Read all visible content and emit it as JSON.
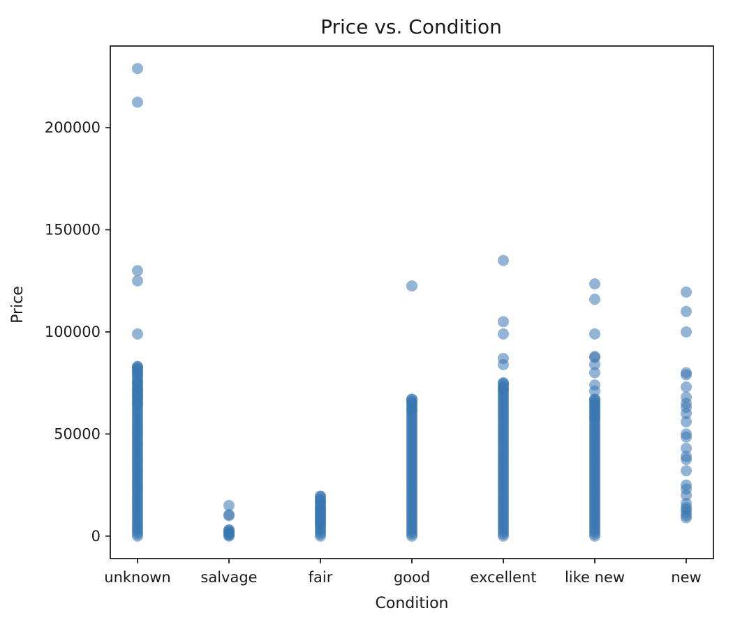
{
  "chart_data": {
    "type": "scatter",
    "title": "Price vs. Condition",
    "xlabel": "Condition",
    "ylabel": "Price",
    "categories": [
      "unknown",
      "salvage",
      "fair",
      "good",
      "excellent",
      "like new",
      "new"
    ],
    "ylim": [
      -11000,
      240000
    ],
    "yticks": [
      0,
      50000,
      100000,
      150000,
      200000
    ],
    "grid": false,
    "point_color": "#3a76b0",
    "series": [
      {
        "category": "unknown",
        "dense_range": [
          0,
          83000
        ],
        "points": [
          229000,
          212500,
          130000,
          125000,
          99000,
          83000,
          82000,
          80000,
          75000,
          72000,
          70000,
          68000,
          65000
        ]
      },
      {
        "category": "salvage",
        "dense_range": [
          0,
          3000
        ],
        "points": [
          15000,
          10500,
          10000,
          3000,
          2000,
          1000,
          500
        ]
      },
      {
        "category": "fair",
        "dense_range": [
          0,
          19500
        ],
        "points": [
          19500,
          17000,
          14000,
          12000,
          10000,
          8000,
          6000
        ]
      },
      {
        "category": "good",
        "dense_range": [
          0,
          67000
        ],
        "points": [
          122500,
          67000,
          65000,
          62000
        ]
      },
      {
        "category": "excellent",
        "dense_range": [
          0,
          75000
        ],
        "points": [
          135000,
          105000,
          99000,
          87000,
          84000,
          75000,
          72000
        ]
      },
      {
        "category": "like new",
        "dense_range": [
          0,
          67000
        ],
        "points": [
          123500,
          116000,
          99000,
          88000,
          87500,
          84000,
          80000,
          74000,
          71000,
          67000,
          64000,
          61000,
          58000
        ]
      },
      {
        "category": "new",
        "dense_range": null,
        "points": [
          119500,
          110000,
          100000,
          80000,
          79000,
          73000,
          68000,
          65000,
          63000,
          60000,
          56000,
          50000,
          48500,
          43000,
          39000,
          37500,
          32000,
          25000,
          23000,
          20000,
          16000,
          14000,
          13000,
          11500,
          10000,
          9000
        ]
      }
    ]
  }
}
